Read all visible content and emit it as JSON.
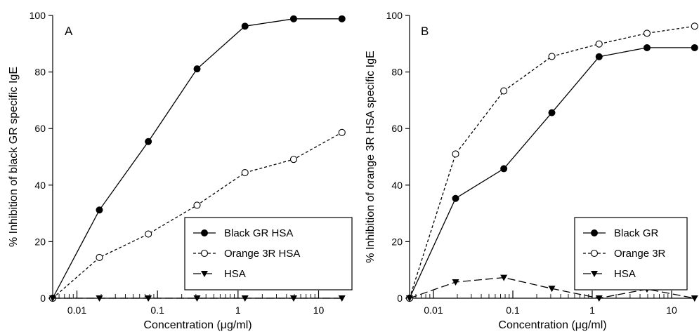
{
  "chart_data": [
    {
      "type": "line",
      "panel_label": "A",
      "xlabel": "Concentration (μg/ml)",
      "ylabel": "% Inhibition of black GR specific IgE",
      "xscale": "log",
      "xlim": [
        0.005,
        20
      ],
      "ylim": [
        0,
        100
      ],
      "yticks": [
        0,
        20,
        40,
        60,
        80,
        100
      ],
      "xticks": [
        0.01,
        0.1,
        1,
        10
      ],
      "xtick_labels": [
        "0.01",
        "0.1",
        "1",
        "10"
      ],
      "grid": false,
      "legend_position": "bottom-right",
      "series": [
        {
          "name": "Black GR HSA",
          "marker": "filled-circle",
          "line": "solid",
          "x": [
            0.005,
            0.019,
            0.077,
            0.31,
            1.22,
            4.9,
            19.5
          ],
          "y": [
            0,
            31.2,
            55.4,
            81.1,
            96.2,
            98.8,
            98.8
          ]
        },
        {
          "name": "Orange 3R HSA",
          "marker": "open-circle",
          "line": "dashed",
          "x": [
            0.005,
            0.019,
            0.077,
            0.31,
            1.22,
            4.9,
            19.5
          ],
          "y": [
            0,
            14.4,
            22.7,
            32.9,
            44.4,
            49.1,
            58.6
          ]
        },
        {
          "name": "HSA",
          "marker": "filled-triangle-down",
          "line": "long-dashed",
          "x": [
            0.005,
            0.019,
            0.077,
            0.31,
            1.22,
            4.9,
            19.5
          ],
          "y": [
            0,
            0,
            0,
            0,
            0,
            0,
            0
          ]
        }
      ]
    },
    {
      "type": "line",
      "panel_label": "B",
      "xlabel": "Concentration (μg/ml)",
      "ylabel": "% Inhibition of orange 3R HSA specific IgE",
      "xscale": "log",
      "xlim": [
        0.005,
        20
      ],
      "ylim": [
        0,
        100
      ],
      "yticks": [
        0,
        20,
        40,
        60,
        80,
        100
      ],
      "xticks": [
        0.01,
        0.1,
        1,
        10
      ],
      "xtick_labels": [
        "0.01",
        "0.1",
        "1",
        "10"
      ],
      "grid": false,
      "legend_position": "bottom-right",
      "series": [
        {
          "name": "Black GR",
          "marker": "filled-circle",
          "line": "solid",
          "x": [
            0.005,
            0.019,
            0.077,
            0.31,
            1.22,
            4.9,
            19.5
          ],
          "y": [
            0,
            35.3,
            45.8,
            65.6,
            85.4,
            88.6,
            88.6
          ]
        },
        {
          "name": "Orange 3R",
          "marker": "open-circle",
          "line": "dashed",
          "x": [
            0.005,
            0.019,
            0.077,
            0.31,
            1.22,
            4.9,
            19.5
          ],
          "y": [
            0,
            51.0,
            73.3,
            85.5,
            89.9,
            93.7,
            96.2
          ]
        },
        {
          "name": "HSA",
          "marker": "filled-triangle-down",
          "line": "long-dashed",
          "x": [
            0.005,
            0.019,
            0.077,
            0.31,
            1.22,
            4.9,
            19.5
          ],
          "y": [
            0,
            5.7,
            7.3,
            3.4,
            0,
            3.2,
            0
          ]
        }
      ]
    }
  ]
}
